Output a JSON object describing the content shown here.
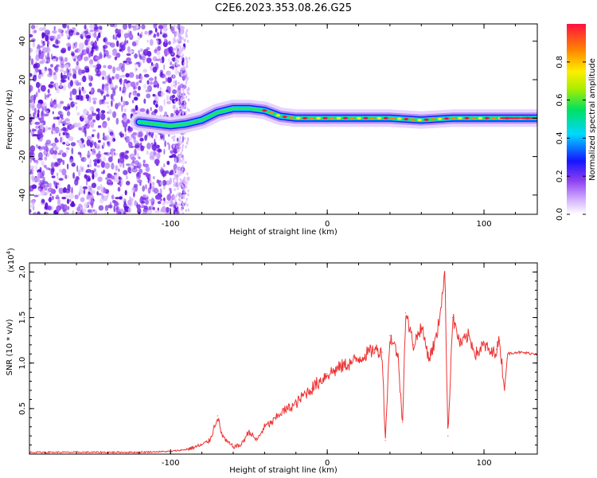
{
  "title": "C2E6.2023.353.08.26.G25",
  "chart_data": [
    {
      "type": "heatmap",
      "xlabel": "Height of straight line (km)",
      "ylabel": "Frequency (Hz)",
      "xlim": [
        -190,
        134
      ],
      "ylim": [
        -50,
        49
      ],
      "x_ticks": [
        -100,
        0,
        100
      ],
      "y_ticks": [
        -40,
        -20,
        0,
        20,
        40
      ],
      "colorbar": {
        "label": "Normalized spectral amplitude",
        "range": [
          0,
          1
        ],
        "ticks": [
          0.0,
          0.2,
          0.4,
          0.6,
          0.8
        ]
      },
      "ridge": {
        "x": [
          -120,
          -110,
          -100,
          -90,
          -80,
          -70,
          -60,
          -50,
          -40,
          -30,
          -20,
          -10,
          0,
          20,
          40,
          60,
          80,
          100,
          110,
          134
        ],
        "y": [
          -2,
          -3,
          -4,
          -3,
          -1,
          3,
          5,
          5,
          4,
          1,
          0,
          0,
          0,
          0,
          0,
          -1,
          0,
          0,
          0,
          0
        ]
      }
    },
    {
      "type": "line",
      "xlabel": "Height of straight line (km)",
      "ylabel": "SNR (10 * v/v)",
      "yscale_label": "(x10",
      "yscale_exp": "4",
      "xlim": [
        -190,
        134
      ],
      "ylim": [
        0,
        2.1
      ],
      "x_ticks": [
        -100,
        0,
        100
      ],
      "y_ticks": [
        0.5,
        1.0,
        1.5,
        2.0
      ],
      "series": [
        {
          "color": "#ee3333",
          "x": [
            -190,
            -150,
            -120,
            -100,
            -90,
            -80,
            -75,
            -72,
            -70,
            -68,
            -65,
            -60,
            -55,
            -50,
            -45,
            -40,
            -35,
            -30,
            -25,
            -20,
            -15,
            -10,
            -5,
            0,
            5,
            10,
            15,
            20,
            25,
            30,
            35,
            37,
            40,
            45,
            48,
            50,
            55,
            60,
            65,
            70,
            73,
            75,
            77,
            80,
            85,
            90,
            95,
            100,
            105,
            108,
            110,
            113,
            115,
            120,
            134
          ],
          "y": [
            0.02,
            0.02,
            0.02,
            0.03,
            0.05,
            0.1,
            0.15,
            0.3,
            0.42,
            0.25,
            0.15,
            0.08,
            0.1,
            0.25,
            0.15,
            0.3,
            0.35,
            0.45,
            0.5,
            0.55,
            0.65,
            0.72,
            0.8,
            0.88,
            0.92,
            0.97,
            1.0,
            1.05,
            1.1,
            1.15,
            1.12,
            0.15,
            1.3,
            1.1,
            0.35,
            1.55,
            1.2,
            1.4,
            1.05,
            1.3,
            1.7,
            2.0,
            0.2,
            1.5,
            1.2,
            1.3,
            1.1,
            1.2,
            1.1,
            1.15,
            1.25,
            0.7,
            1.1,
            1.12,
            1.1
          ]
        }
      ]
    }
  ]
}
